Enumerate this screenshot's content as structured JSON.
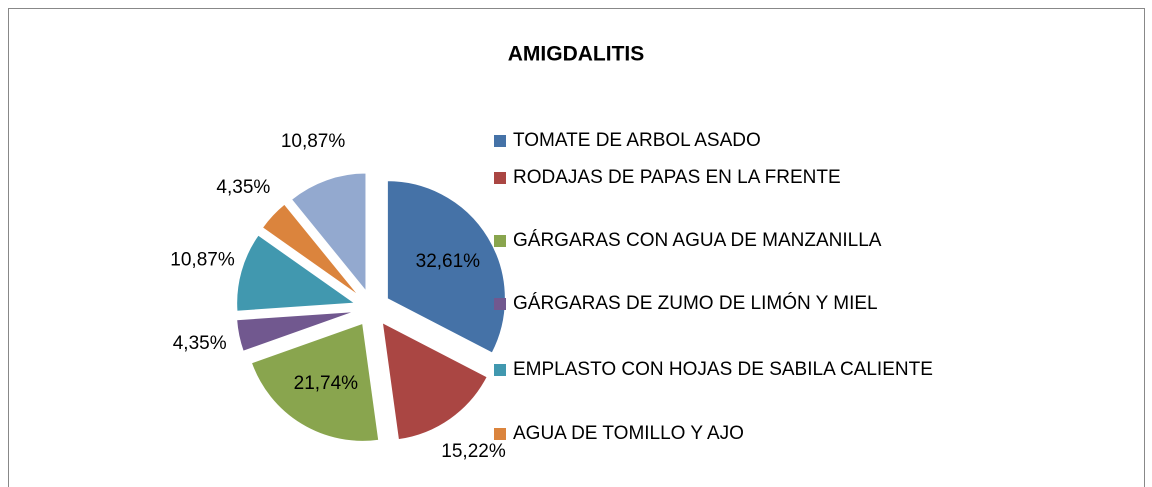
{
  "chart_data": {
    "type": "pie",
    "title": "AMIGDALITIS",
    "categories": [
      "TOMATE DE ARBOL ASADO",
      "RODAJAS DE PAPAS EN LA FRENTE",
      "GÁRGARAS CON AGUA DE MANZANILLA",
      "GÁRGARAS DE ZUMO DE LIMÓN Y MIEL",
      "EMPLASTO CON HOJAS DE SABILA CALIENTE",
      "AGUA DE TOMILLO Y AJO",
      null
    ],
    "values": [
      32.61,
      15.22,
      21.74,
      4.35,
      10.87,
      4.35,
      10.87
    ],
    "value_labels": [
      "32,61%",
      "15,22%",
      "21,74%",
      "4,35%",
      "10,87%",
      "4,35%",
      "10,87%"
    ],
    "colors": [
      "#4572a7",
      "#aa4643",
      "#89a54e",
      "#71588f",
      "#4198af",
      "#db843d",
      "#93a9cf"
    ],
    "legend": "right"
  }
}
